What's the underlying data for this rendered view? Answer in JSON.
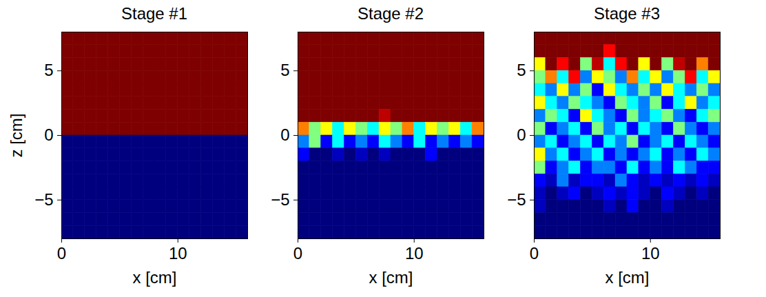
{
  "chart_data": [
    {
      "type": "heatmap",
      "title": "Stage #1",
      "xlabel": "x [cm]",
      "ylabel": "z [cm]",
      "xlim": [
        0,
        16
      ],
      "ylim": [
        -8,
        8
      ],
      "xticks": [
        0,
        10
      ],
      "yticks": [
        {
          "value": -5,
          "label": "−5"
        },
        0,
        5
      ],
      "cells": [
        [
          1,
          1,
          1,
          1,
          1,
          1,
          1,
          1,
          1,
          1,
          1,
          1,
          1,
          1,
          1,
          1
        ],
        [
          1,
          1,
          1,
          1,
          1,
          1,
          1,
          1,
          1,
          1,
          1,
          1,
          1,
          1,
          1,
          1
        ],
        [
          1,
          1,
          1,
          1,
          1,
          1,
          1,
          1,
          1,
          1,
          1,
          1,
          1,
          1,
          1,
          1
        ],
        [
          1,
          1,
          1,
          1,
          1,
          1,
          1,
          1,
          1,
          1,
          1,
          1,
          1,
          1,
          1,
          1
        ],
        [
          1,
          1,
          1,
          1,
          1,
          1,
          1,
          1,
          1,
          1,
          1,
          1,
          1,
          1,
          1,
          1
        ],
        [
          1,
          1,
          1,
          1,
          1,
          1,
          1,
          1,
          1,
          1,
          1,
          1,
          1,
          1,
          1,
          1
        ],
        [
          1,
          1,
          1,
          1,
          1,
          1,
          1,
          1,
          1,
          1,
          1,
          1,
          1,
          1,
          1,
          1
        ],
        [
          1,
          1,
          1,
          1,
          1,
          1,
          1,
          1,
          1,
          1,
          1,
          1,
          1,
          1,
          1,
          1
        ],
        [
          0,
          0,
          0,
          0,
          0,
          0,
          0,
          0,
          0,
          0,
          0,
          0,
          0,
          0,
          0,
          0
        ],
        [
          0,
          0,
          0,
          0,
          0,
          0,
          0,
          0,
          0,
          0,
          0,
          0,
          0,
          0,
          0,
          0
        ],
        [
          0,
          0,
          0,
          0,
          0,
          0,
          0,
          0,
          0,
          0,
          0,
          0,
          0,
          0,
          0,
          0
        ],
        [
          0,
          0,
          0,
          0,
          0,
          0,
          0,
          0,
          0,
          0,
          0,
          0,
          0,
          0,
          0,
          0
        ],
        [
          0,
          0,
          0,
          0,
          0,
          0,
          0,
          0,
          0,
          0,
          0,
          0,
          0,
          0,
          0,
          0
        ],
        [
          0,
          0,
          0,
          0,
          0,
          0,
          0,
          0,
          0,
          0,
          0,
          0,
          0,
          0,
          0,
          0
        ],
        [
          0,
          0,
          0,
          0,
          0,
          0,
          0,
          0,
          0,
          0,
          0,
          0,
          0,
          0,
          0,
          0
        ],
        [
          0,
          0,
          0,
          0,
          0,
          0,
          0,
          0,
          0,
          0,
          0,
          0,
          0,
          0,
          0,
          0
        ]
      ]
    },
    {
      "type": "heatmap",
      "title": "Stage #2",
      "xlabel": "x [cm]",
      "xlim": [
        0,
        16
      ],
      "ylim": [
        -8,
        8
      ],
      "xticks": [
        0,
        10
      ],
      "yticks": [
        {
          "value": -5,
          "label": "−5"
        },
        0,
        5
      ],
      "cells": [
        [
          1,
          1,
          1,
          1,
          1,
          1,
          1,
          1,
          1,
          1,
          1,
          1,
          1,
          1,
          1,
          1
        ],
        [
          1,
          1,
          1,
          1,
          1,
          1,
          1,
          1,
          1,
          1,
          1,
          1,
          1,
          1,
          1,
          1
        ],
        [
          1,
          1,
          1,
          1,
          1,
          1,
          1,
          1,
          1,
          1,
          1,
          1,
          1,
          1,
          1,
          1
        ],
        [
          1,
          1,
          1,
          1,
          1,
          1,
          1,
          1,
          1,
          1,
          1,
          1,
          1,
          1,
          1,
          1
        ],
        [
          1,
          1,
          1,
          1,
          1,
          1,
          1,
          1,
          1,
          1,
          1,
          1,
          1,
          1,
          1,
          1
        ],
        [
          1,
          1,
          1,
          1,
          1,
          1,
          1,
          1,
          1,
          1,
          1,
          1,
          1,
          1,
          1,
          1
        ],
        [
          1,
          1,
          1,
          1,
          1,
          1,
          1,
          0.9,
          1,
          1,
          1,
          1,
          1,
          1,
          1,
          1
        ],
        [
          0.7,
          0.5,
          0.6,
          0.4,
          0.6,
          0.5,
          0.4,
          0.6,
          0.5,
          0.7,
          0.4,
          0.6,
          0.5,
          0.6,
          0.4,
          0.7
        ],
        [
          0.3,
          0.5,
          0.2,
          0.4,
          0.2,
          0.3,
          0.2,
          0.4,
          0.3,
          0.2,
          0.4,
          0.2,
          0.3,
          0.2,
          0.3,
          0.2
        ],
        [
          0.2,
          0,
          0,
          0.1,
          0,
          0.1,
          0,
          0.1,
          0,
          0,
          0,
          0.2,
          0,
          0,
          0,
          0
        ],
        [
          0,
          0,
          0,
          0,
          0,
          0,
          0,
          0,
          0,
          0,
          0,
          0,
          0,
          0,
          0,
          0
        ],
        [
          0,
          0,
          0,
          0,
          0,
          0,
          0,
          0,
          0,
          0,
          0,
          0,
          0,
          0,
          0,
          0
        ],
        [
          0,
          0,
          0,
          0,
          0,
          0,
          0,
          0,
          0,
          0,
          0,
          0,
          0,
          0,
          0,
          0
        ],
        [
          0,
          0,
          0,
          0,
          0,
          0,
          0,
          0,
          0,
          0,
          0,
          0,
          0,
          0,
          0,
          0
        ],
        [
          0,
          0,
          0,
          0,
          0,
          0,
          0,
          0,
          0,
          0,
          0,
          0,
          0,
          0,
          0,
          0
        ],
        [
          0,
          0,
          0,
          0,
          0,
          0,
          0,
          0,
          0,
          0,
          0,
          0,
          0,
          0,
          0,
          0
        ]
      ]
    },
    {
      "type": "heatmap",
      "title": "Stage #3",
      "xlabel": "x [cm]",
      "xlim": [
        0,
        16
      ],
      "ylim": [
        -8,
        8
      ],
      "xticks": [
        0,
        10
      ],
      "yticks": [
        {
          "value": -5,
          "label": "−5"
        },
        0,
        5
      ],
      "cells": [
        [
          1,
          1,
          1,
          1,
          1,
          1,
          1,
          1,
          1,
          1,
          1,
          1,
          1,
          1,
          1,
          1
        ],
        [
          1,
          1,
          1,
          1,
          1,
          1,
          0.8,
          1,
          1,
          1,
          1,
          1,
          1,
          1,
          1,
          1
        ],
        [
          0.6,
          1,
          0.8,
          1,
          0.5,
          0.9,
          0.4,
          0.8,
          1,
          0.6,
          1,
          0.5,
          0.9,
          1,
          0.7,
          1
        ],
        [
          0.5,
          0.7,
          0.4,
          0.8,
          0.3,
          0.6,
          0.5,
          0.3,
          0.7,
          0.4,
          0.6,
          0.3,
          0.5,
          0.8,
          0.4,
          0.6
        ],
        [
          0.4,
          0.3,
          0.6,
          0.3,
          0.5,
          0.2,
          0.6,
          0.4,
          0.3,
          0.5,
          0.3,
          0.6,
          0.4,
          0.3,
          0.5,
          0.3
        ],
        [
          0.6,
          0.4,
          0.3,
          0.5,
          0.4,
          0.3,
          0.2,
          0.5,
          0.4,
          0.3,
          0.5,
          0.2,
          0.4,
          0.6,
          0.3,
          0.4
        ],
        [
          0.3,
          0.5,
          0.4,
          0.2,
          0.6,
          0.4,
          0.3,
          0.2,
          0.5,
          0.3,
          0.4,
          0.5,
          0.3,
          0.2,
          0.4,
          0.5
        ],
        [
          0.5,
          0.2,
          0.3,
          0.4,
          0.2,
          0.5,
          0.3,
          0.4,
          0.2,
          0.4,
          0.3,
          0.2,
          0.5,
          0.3,
          0.2,
          0.3
        ],
        [
          0.3,
          0.4,
          0.2,
          0.3,
          0.4,
          0.2,
          0.4,
          0.3,
          0.5,
          0.2,
          0.3,
          0.4,
          0.2,
          0.4,
          0.3,
          0.2
        ],
        [
          0.6,
          0.3,
          0.4,
          0.2,
          0.3,
          0.4,
          0.2,
          0.3,
          0.2,
          0.3,
          0.4,
          0.2,
          0.3,
          0.2,
          0.4,
          0.3
        ],
        [
          0.5,
          0.2,
          0.3,
          0.4,
          0.2,
          0.3,
          0.3,
          0.2,
          0.4,
          0.2,
          0.3,
          0.2,
          0.4,
          0.3,
          0.2,
          0.2
        ],
        [
          0.2,
          0.1,
          0.3,
          0.1,
          0.2,
          0.2,
          0.1,
          0.3,
          0.2,
          0.1,
          0.2,
          0.1,
          0.2,
          0.1,
          0.2,
          0.1
        ],
        [
          0.1,
          0,
          0.1,
          0.2,
          0,
          0.1,
          0.2,
          0.1,
          0.2,
          0.1,
          0,
          0.2,
          0.1,
          0,
          0.1,
          0
        ],
        [
          0.1,
          0,
          0,
          0,
          0,
          0,
          0.1,
          0,
          0.2,
          0,
          0,
          0.1,
          0,
          0,
          0,
          0
        ],
        [
          0,
          0,
          0,
          0,
          0,
          0,
          0,
          0,
          0,
          0,
          0,
          0,
          0,
          0,
          0,
          0
        ],
        [
          0,
          0,
          0,
          0,
          0,
          0,
          0,
          0,
          0,
          0,
          0,
          0,
          0,
          0,
          0,
          0
        ]
      ]
    }
  ]
}
